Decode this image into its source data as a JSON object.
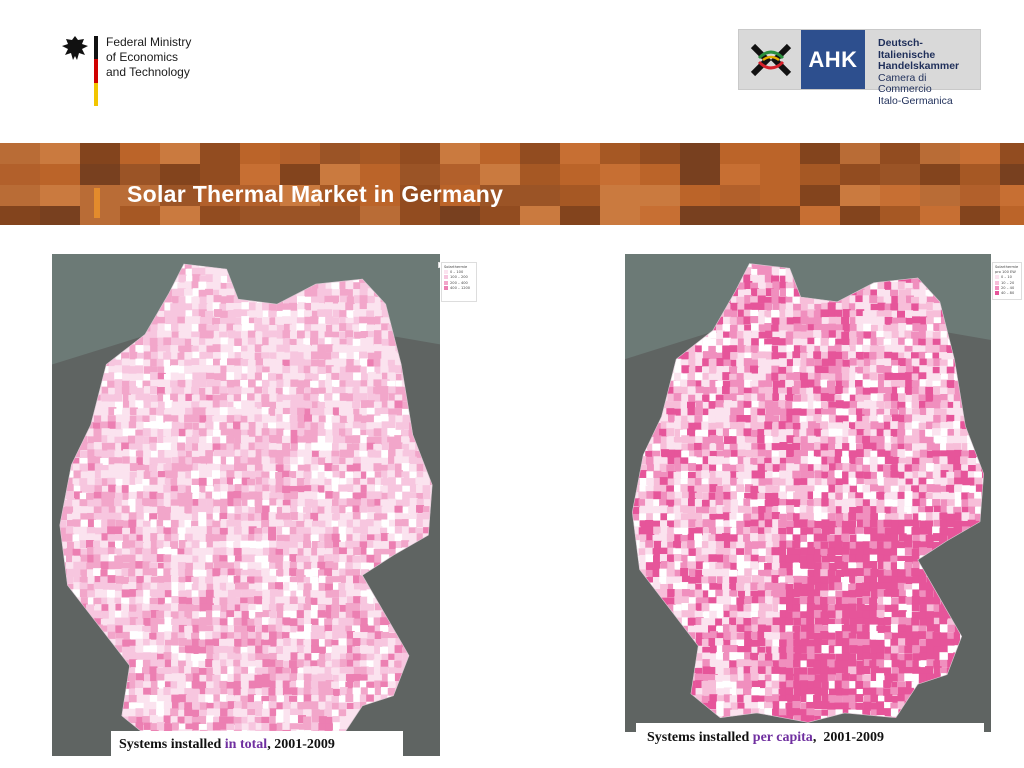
{
  "header": {
    "ministry_lines": [
      "Federal Ministry",
      "of Economics",
      "and Technology"
    ],
    "ahk": {
      "logo_text": "AHK",
      "line1": "Deutsch-Italienische",
      "line2": "Handelskammer",
      "line3": "Camera di Commercio",
      "line4": "Italo-Germanica"
    }
  },
  "slide": {
    "title": "Solar Thermal Market in Germany",
    "accent_color": "#e38b2c"
  },
  "maps": [
    {
      "caption_prefix": "Systems installed ",
      "caption_highlight": "in total",
      "caption_suffix": ", 2001-2009",
      "legend_title": "Solarthermie",
      "legend_items": [
        "0 – 100",
        "100 – 200",
        "200 – 400",
        "400 – 1200"
      ],
      "palette": [
        "#fbe3ef",
        "#f7c6df",
        "#f2a6ca",
        "#ec7fb2"
      ]
    },
    {
      "caption_prefix": "Systems installed ",
      "caption_highlight": "per capita",
      "caption_suffix": ",  2001-2009",
      "legend_title": "Solarthermie pro 100 EW",
      "legend_items": [
        "0 – 10",
        "10 – 20",
        "20 – 40",
        "40 – 80"
      ],
      "palette": [
        "#fbe3ef",
        "#f7bed9",
        "#f08fbe",
        "#e6559a"
      ]
    }
  ],
  "colors": {
    "banner_orange": "#c9692a",
    "banner_brown": "#6b3a1f",
    "highlight_text": "#7030a0",
    "map_background": "#6e7370"
  }
}
